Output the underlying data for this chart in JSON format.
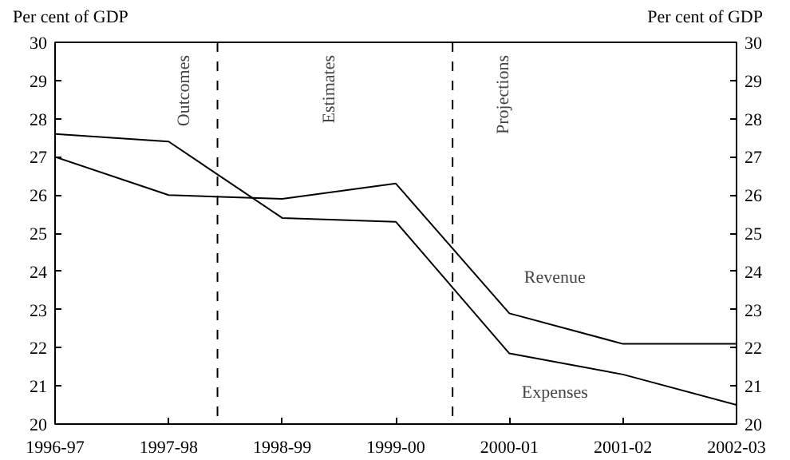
{
  "chart_data": {
    "type": "line",
    "categories": [
      "1996-97",
      "1997-98",
      "1998-99",
      "1999-00",
      "2000-01",
      "2001-02",
      "2002-03"
    ],
    "ylabel": "Per cent of GDP",
    "y2label": "Per cent of GDP",
    "ylim": [
      20,
      30
    ],
    "yticks": [
      20,
      21,
      22,
      23,
      24,
      25,
      26,
      27,
      28,
      29,
      30
    ],
    "y2lim": [
      20,
      30
    ],
    "y2ticks": [
      20,
      21,
      22,
      23,
      24,
      25,
      26,
      27,
      28,
      29,
      30
    ],
    "series": [
      {
        "name": "Revenue",
        "color": "#000000",
        "values": [
          27.0,
          26.0,
          25.9,
          26.3,
          22.9,
          22.1,
          22.1
        ]
      },
      {
        "name": "Expenses",
        "color": "#000000",
        "values": [
          27.6,
          27.4,
          25.4,
          25.3,
          21.85,
          21.3,
          20.5
        ]
      }
    ],
    "annotations": [
      "Outcomes",
      "Estimates",
      "Projections"
    ],
    "grid": false,
    "marker": "none",
    "line_style": "solid"
  }
}
